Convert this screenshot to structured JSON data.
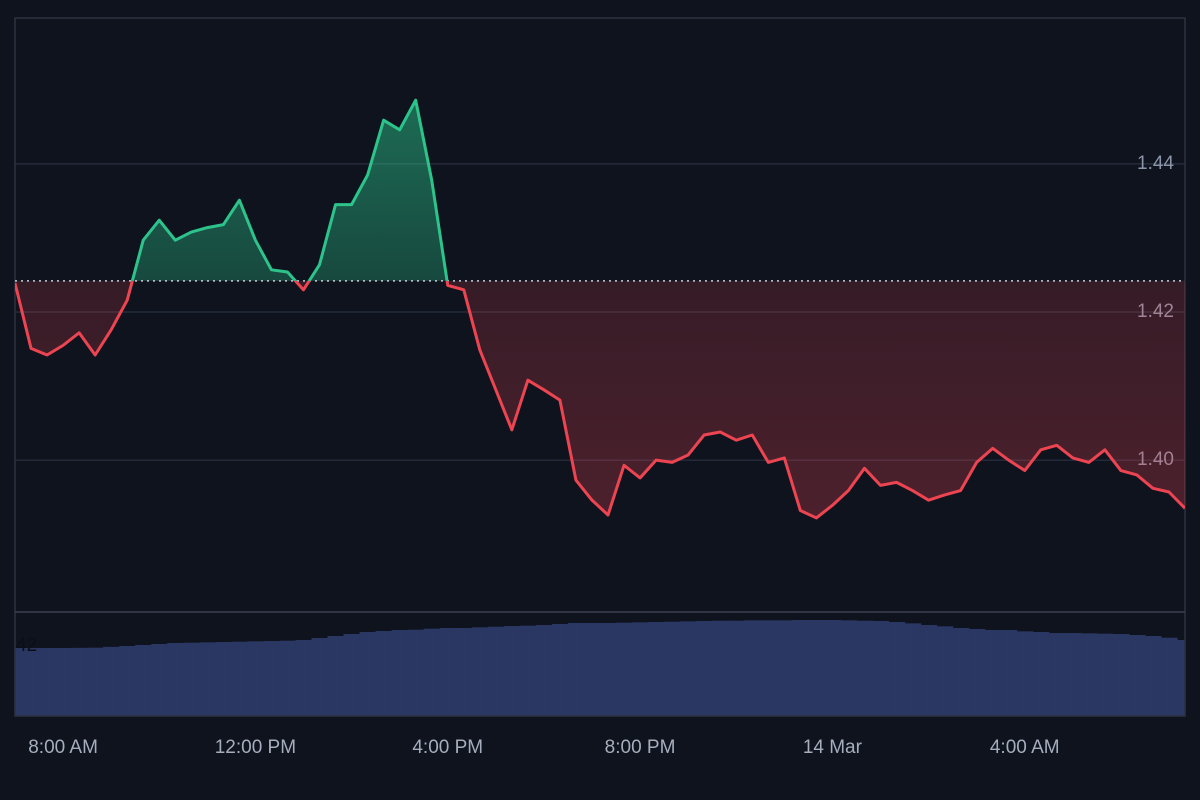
{
  "chart_data": {
    "type": "baseline-area",
    "categories": [
      null,
      null,
      null,
      "8:00 AM",
      null,
      null,
      null,
      null,
      null,
      null,
      null,
      null,
      null,
      null,
      null,
      "12:00 PM",
      null,
      null,
      null,
      null,
      null,
      null,
      null,
      null,
      null,
      null,
      null,
      "4:00 PM",
      null,
      null,
      null,
      null,
      null,
      null,
      null,
      null,
      null,
      null,
      null,
      "8:00 PM",
      null,
      null,
      null,
      null,
      null,
      null,
      null,
      null,
      null,
      null,
      null,
      "14 Mar",
      null,
      null,
      null,
      null,
      null,
      null,
      null,
      null,
      null,
      null,
      null,
      "4:00 AM",
      null,
      null,
      null,
      null,
      null,
      null,
      null,
      null,
      null,
      null
    ],
    "values": [
      1.4239,
      1.4151,
      1.4142,
      1.4155,
      1.4172,
      1.4142,
      1.4176,
      1.4216,
      1.4297,
      1.4324,
      1.4297,
      1.4308,
      1.4314,
      1.4318,
      1.4351,
      1.4297,
      1.4257,
      1.4254,
      1.423,
      1.4264,
      1.4345,
      1.4345,
      1.4385,
      1.4459,
      1.4446,
      1.4486,
      1.4378,
      1.4236,
      1.423,
      1.4149,
      1.4095,
      1.4041,
      1.4108,
      1.4095,
      1.4081,
      1.3973,
      1.3946,
      1.3926,
      1.3993,
      1.3976,
      1.4,
      1.3997,
      1.4007,
      1.4034,
      1.4038,
      1.4027,
      1.4034,
      1.3997,
      1.4003,
      1.3932,
      1.3922,
      1.3939,
      1.3959,
      1.3989,
      1.3966,
      1.397,
      1.3959,
      1.3946,
      1.3953,
      1.3959,
      1.3997,
      1.4016,
      1.4,
      1.3986,
      1.4014,
      1.402,
      1.4003,
      1.3997,
      1.4014,
      1.3986,
      1.398,
      1.3962,
      1.3957,
      1.3935
    ],
    "baseline": 1.4242,
    "up_color": "#2cc48a",
    "down_color": "#ec4451",
    "ylim": [
      1.3795,
      1.4597
    ],
    "yticks": [
      1.44,
      1.42,
      {
        "value": 1.4,
        "label": "1.40"
      }
    ],
    "grid": true,
    "volume": {
      "values": [
        40.8,
        40.8,
        40.8,
        40.8,
        40.9,
        41.0,
        41.5,
        42.0,
        42.6,
        43.2,
        43.8,
        44.0,
        44.2,
        44.4,
        44.6,
        44.8,
        45.0,
        45.2,
        45.6,
        46.8,
        48.0,
        49.2,
        50.4,
        51.0,
        51.6,
        51.8,
        52.4,
        52.8,
        52.8,
        53.2,
        53.6,
        54.0,
        54.2,
        54.6,
        55.2,
        55.8,
        55.8,
        55.8,
        56.0,
        56.2,
        56.4,
        56.6,
        56.8,
        57.0,
        57.2,
        57.2,
        57.4,
        57.4,
        57.4,
        57.6,
        57.6,
        57.6,
        57.4,
        57.2,
        57.0,
        56.4,
        55.6,
        54.6,
        53.8,
        52.8,
        52.2,
        51.6,
        51.6,
        50.8,
        50.4,
        49.8,
        49.8,
        49.6,
        49.4,
        49.2,
        48.6,
        48.0,
        47.0,
        45.6
      ],
      "color": "#2a3762",
      "ylim": [
        0,
        62.4
      ],
      "yticks": [
        42
      ]
    }
  }
}
